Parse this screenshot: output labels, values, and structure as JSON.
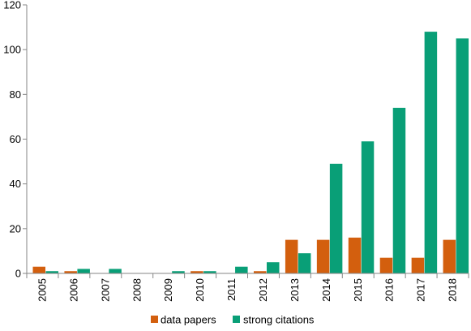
{
  "chart_data": {
    "type": "bar",
    "categories": [
      "2005",
      "2006",
      "2007",
      "2008",
      "2009",
      "2010",
      "2011",
      "2012",
      "2013",
      "2014",
      "2015",
      "2016",
      "2017",
      "2018"
    ],
    "series": [
      {
        "name": "data papers",
        "color": "#d35f0e",
        "values": [
          3,
          1,
          0,
          0,
          0,
          1,
          0,
          1,
          15,
          15,
          16,
          7,
          7,
          15
        ]
      },
      {
        "name": "strong citations",
        "color": "#099f77",
        "values": [
          1,
          2,
          2,
          0,
          1,
          1,
          3,
          5,
          9,
          49,
          59,
          74,
          108,
          105
        ]
      }
    ],
    "ylim": [
      0,
      120
    ],
    "yticks": [
      "0",
      "20",
      "40",
      "60",
      "80",
      "100",
      "120"
    ],
    "grid": false,
    "legend_position": "bottom"
  }
}
